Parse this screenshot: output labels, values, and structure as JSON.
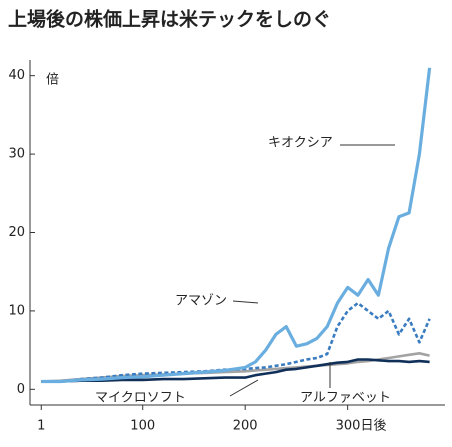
{
  "chart_data": {
    "type": "line",
    "title": "上場後の株価上昇は米テックをしのぐ",
    "ylabel": "倍",
    "x": [
      1,
      20,
      40,
      60,
      80,
      100,
      120,
      140,
      160,
      180,
      200,
      210,
      220,
      230,
      240,
      250,
      260,
      270,
      280,
      290,
      300,
      310,
      320,
      330,
      340,
      350,
      360,
      370,
      380
    ],
    "xlim": [
      -10,
      395
    ],
    "xticks": [
      1,
      100,
      200,
      {
        "value": 300,
        "label": "300日後"
      }
    ],
    "ylim": [
      -2,
      42
    ],
    "yticks": [
      0,
      10,
      20,
      30,
      40
    ],
    "series": [
      {
        "name": "キオクシア",
        "color": "#6aaee0",
        "dashed": false,
        "values": [
          1,
          1,
          1.2,
          1.3,
          1.5,
          1.6,
          1.8,
          2,
          2.2,
          2.4,
          2.8,
          3.5,
          5,
          7,
          8,
          5.5,
          5.8,
          6.5,
          8,
          11,
          13,
          12,
          14,
          12,
          18,
          22,
          22.5,
          30,
          41
        ]
      },
      {
        "name": "アマゾン",
        "color": "#3a7cc0",
        "dashed": true,
        "values": [
          1,
          1,
          1.3,
          1.5,
          1.8,
          2,
          2.1,
          2.2,
          2.3,
          2.5,
          2.6,
          2.7,
          2.8,
          3,
          3.2,
          3.5,
          3.8,
          4,
          4.5,
          8,
          10,
          11,
          10,
          9,
          10,
          7,
          9,
          6,
          9
        ]
      },
      {
        "name": "アルファベット",
        "color": "#a3a3a3",
        "dashed": false,
        "values": [
          1,
          1.1,
          1.3,
          1.5,
          1.7,
          1.8,
          1.9,
          2,
          2.1,
          2.2,
          2.3,
          2.4,
          2.5,
          2.6,
          2.7,
          2.8,
          2.9,
          3,
          3.1,
          3.2,
          3.3,
          3.5,
          3.6,
          3.8,
          4,
          4.2,
          4.4,
          4.6,
          4.3
        ]
      },
      {
        "name": "マイクロソフト",
        "color": "#10305a",
        "dashed": false,
        "values": [
          1,
          1,
          1.1,
          1.1,
          1.2,
          1.2,
          1.3,
          1.3,
          1.4,
          1.5,
          1.5,
          1.8,
          2,
          2.2,
          2.5,
          2.6,
          2.8,
          3,
          3.2,
          3.4,
          3.5,
          3.8,
          3.8,
          3.7,
          3.6,
          3.6,
          3.5,
          3.6,
          3.5
        ]
      }
    ]
  }
}
